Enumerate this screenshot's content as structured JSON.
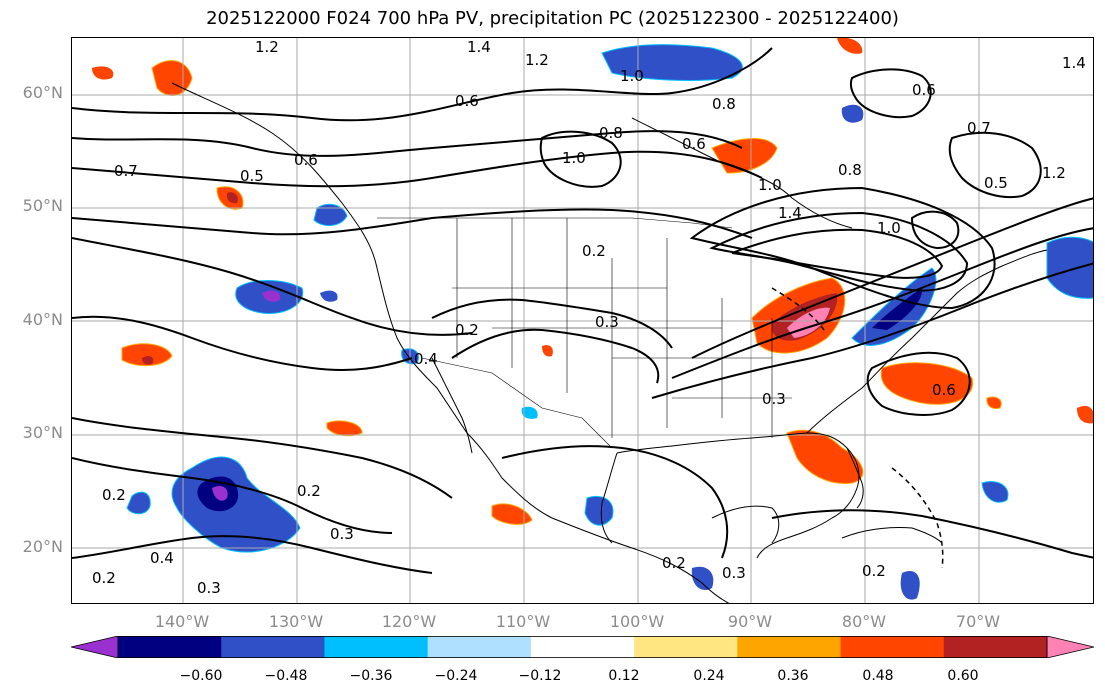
{
  "title": "2025122000 F024 700 hPa PV, precipitation PC (2025122300 - 2025122400)",
  "lat_labels": [
    "60°N",
    "50°N",
    "40°N",
    "30°N",
    "20°N"
  ],
  "lon_labels": [
    "140°W",
    "130°W",
    "120°W",
    "110°W",
    "100°W",
    "90°W",
    "80°W",
    "70°W"
  ],
  "colorbar": {
    "ticks": [
      "−0.60",
      "−0.48",
      "−0.36",
      "−0.24",
      "−0.12",
      "0.12",
      "0.24",
      "0.36",
      "0.48",
      "0.60"
    ],
    "colors": [
      "#9b30d0",
      "#000080",
      "#3050c8",
      "#00bfff",
      "#b0e0ff",
      "#ffffff",
      "#ffe680",
      "#ffa500",
      "#ff4500",
      "#b22222",
      "#ff82b4"
    ]
  },
  "contour_labels": [
    "1.2",
    "1.4",
    "1.2",
    "1.0",
    "0.6",
    "0.8",
    "0.8",
    "0.6",
    "1.0",
    "0.6",
    "0.7",
    "0.5",
    "0.2",
    "1.0",
    "1.4",
    "0.8",
    "1.0",
    "0.5",
    "0.6",
    "0.7",
    "0.3",
    "0.2",
    "0.4",
    "0.3",
    "0.3",
    "0.2",
    "0.2",
    "0.4",
    "0.3",
    "0.2",
    "0.3",
    "0.2",
    "0.2",
    "0.6",
    "1.4",
    "1.2"
  ]
}
